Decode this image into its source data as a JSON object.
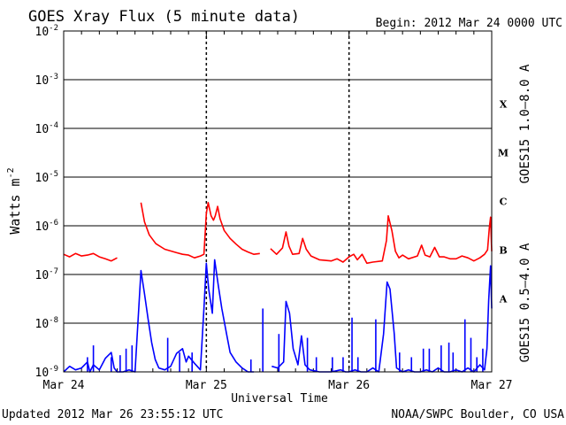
{
  "header": {
    "title": "GOES Xray Flux (5 minute data)",
    "begin": "Begin:  2012 Mar 24 0000 UTC"
  },
  "footer": {
    "updated": "Updated 2012 Mar 26 23:55:12 UTC",
    "credit": "NOAA/SWPC Boulder, CO USA"
  },
  "chart_data": {
    "type": "line",
    "title": "GOES Xray Flux (5 minute data)",
    "xlabel": "Universal Time",
    "ylabel": "Watts m",
    "ylabel_exponent": "-2",
    "yscale": "log",
    "ylim": [
      1e-09,
      0.01
    ],
    "xlim": [
      0,
      72
    ],
    "x_unit": "hours since 2012 Mar 24 0000 UTC",
    "x_ticks": [
      {
        "x": 0,
        "label": "Mar 24"
      },
      {
        "x": 24,
        "label": "Mar 25"
      },
      {
        "x": 48,
        "label": "Mar 26"
      },
      {
        "x": 72,
        "label": "Mar 27"
      }
    ],
    "y_ticks": [
      {
        "exp": -2,
        "base": "10",
        "sup": "-2"
      },
      {
        "exp": -3,
        "base": "10",
        "sup": "-3"
      },
      {
        "exp": -4,
        "base": "10",
        "sup": "-4"
      },
      {
        "exp": -5,
        "base": "10",
        "sup": "-5"
      },
      {
        "exp": -6,
        "base": "10",
        "sup": "-6"
      },
      {
        "exp": -7,
        "base": "10",
        "sup": "-7"
      },
      {
        "exp": -8,
        "base": "10",
        "sup": "-8"
      },
      {
        "exp": -9,
        "base": "10",
        "sup": "-9"
      }
    ],
    "flare_classes": [
      {
        "label": "X",
        "exp": -3.5
      },
      {
        "label": "M",
        "exp": -4.5
      },
      {
        "label": "C",
        "exp": -5.5
      },
      {
        "label": "B",
        "exp": -6.5
      },
      {
        "label": "A",
        "exp": -7.5
      }
    ],
    "grid": true,
    "series": [
      {
        "name": "GOES15 1.0–8.0 A",
        "color": "#ff0000",
        "segments": [
          [
            [
              0,
              2.6e-07
            ],
            [
              1,
              2.3e-07
            ],
            [
              2,
              2.7e-07
            ],
            [
              3,
              2.4e-07
            ],
            [
              4,
              2.5e-07
            ],
            [
              5,
              2.7e-07
            ],
            [
              6,
              2.3e-07
            ],
            [
              7,
              2.1e-07
            ],
            [
              8,
              1.9e-07
            ],
            [
              9,
              2.2e-07
            ]
          ],
          [
            [
              13,
              3e-06
            ],
            [
              13.6,
              1.2e-06
            ],
            [
              14.4,
              6.5e-07
            ],
            [
              15.5,
              4.3e-07
            ],
            [
              17,
              3.3e-07
            ],
            [
              19,
              2.8e-07
            ],
            [
              20,
              2.6e-07
            ],
            [
              21,
              2.5e-07
            ],
            [
              22,
              2.2e-07
            ],
            [
              23,
              2.4e-07
            ],
            [
              23.6,
              2.6e-07
            ],
            [
              24,
              1.8e-06
            ],
            [
              24.3,
              3e-06
            ],
            [
              24.8,
              1.6e-06
            ],
            [
              25.2,
              1.3e-06
            ],
            [
              25.5,
              1.6e-06
            ],
            [
              25.9,
              2.5e-06
            ],
            [
              26.3,
              1.4e-06
            ],
            [
              27,
              8e-07
            ],
            [
              28,
              5.5e-07
            ],
            [
              29,
              4.2e-07
            ],
            [
              30,
              3.3e-07
            ],
            [
              31,
              2.9e-07
            ],
            [
              32,
              2.6e-07
            ],
            [
              33,
              2.7e-07
            ]
          ],
          [
            [
              34.8,
              3.4e-07
            ],
            [
              35.8,
              2.6e-07
            ],
            [
              36.8,
              3.5e-07
            ],
            [
              37.4,
              7.5e-07
            ],
            [
              37.9,
              3.8e-07
            ],
            [
              38.5,
              2.6e-07
            ],
            [
              39.6,
              2.7e-07
            ],
            [
              40.2,
              5.5e-07
            ],
            [
              40.8,
              3.3e-07
            ],
            [
              41.6,
              2.4e-07
            ],
            [
              43,
              2e-07
            ],
            [
              45,
              1.9e-07
            ],
            [
              46,
              2.1e-07
            ],
            [
              47,
              1.8e-07
            ],
            [
              48,
              2.3e-07
            ],
            [
              48.8,
              2.6e-07
            ],
            [
              49.4,
              2e-07
            ],
            [
              50.2,
              2.6e-07
            ],
            [
              51,
              1.7e-07
            ],
            [
              52,
              1.8e-07
            ],
            [
              53.6,
              1.9e-07
            ],
            [
              54.3,
              5e-07
            ],
            [
              54.6,
              1.6e-06
            ],
            [
              55.2,
              8e-07
            ],
            [
              55.8,
              3e-07
            ],
            [
              56.4,
              2.2e-07
            ],
            [
              57,
              2.5e-07
            ],
            [
              58,
              2.1e-07
            ],
            [
              59.5,
              2.4e-07
            ],
            [
              60.2,
              4e-07
            ],
            [
              60.8,
              2.5e-07
            ],
            [
              61.6,
              2.3e-07
            ],
            [
              62.4,
              3.6e-07
            ],
            [
              63.2,
              2.3e-07
            ],
            [
              64,
              2.3e-07
            ],
            [
              65,
              2.1e-07
            ],
            [
              66,
              2.1e-07
            ],
            [
              67,
              2.4e-07
            ],
            [
              68,
              2.2e-07
            ],
            [
              69,
              1.9e-07
            ],
            [
              70,
              2.2e-07
            ],
            [
              70.8,
              2.6e-07
            ],
            [
              71.3,
              3.2e-07
            ],
            [
              71.6,
              9e-07
            ],
            [
              71.8,
              1.5e-06
            ],
            [
              72,
              3e-07
            ]
          ]
        ]
      },
      {
        "name": "GOES15 0.5–4.0 A",
        "color": "#0000ff",
        "segments": [
          [
            [
              0,
              1e-09
            ],
            [
              1,
              1.3e-09
            ],
            [
              2,
              1.1e-09
            ],
            [
              3,
              1.2e-09
            ],
            [
              4,
              1.6e-09
            ],
            [
              4.4,
              1e-09
            ],
            [
              5,
              1.4e-09
            ],
            [
              6,
              1.1e-09
            ],
            [
              7,
              1.9e-09
            ],
            [
              8,
              2.5e-09
            ],
            [
              8.5,
              1.2e-09
            ],
            [
              9,
              1e-09
            ],
            [
              10,
              1e-09
            ],
            [
              11,
              1.1e-09
            ],
            [
              12,
              1e-09
            ],
            [
              13,
              1.2e-07
            ],
            [
              13.6,
              4e-08
            ],
            [
              14.2,
              1.2e-08
            ],
            [
              14.8,
              4e-09
            ],
            [
              15.4,
              1.8e-09
            ],
            [
              16,
              1.2e-09
            ],
            [
              17,
              1.1e-09
            ],
            [
              18,
              1.3e-09
            ],
            [
              19,
              2.4e-09
            ],
            [
              20,
              3e-09
            ],
            [
              20.6,
              1.6e-09
            ],
            [
              21,
              2.1e-09
            ],
            [
              22,
              1.5e-09
            ],
            [
              23,
              1.1e-09
            ],
            [
              23.6,
              2e-08
            ],
            [
              24,
              1.7e-07
            ],
            [
              24.4,
              5e-08
            ],
            [
              25,
              1.6e-08
            ],
            [
              25.4,
              2e-07
            ],
            [
              26,
              6e-08
            ],
            [
              26.6,
              2e-08
            ],
            [
              27.4,
              6e-09
            ],
            [
              28,
              2.5e-09
            ],
            [
              29,
              1.6e-09
            ],
            [
              30,
              1.2e-09
            ],
            [
              31,
              1e-09
            ],
            [
              32,
              1e-09
            ]
          ],
          [
            [
              35,
              1.3e-09
            ],
            [
              36,
              1.2e-09
            ],
            [
              37,
              1.6e-09
            ],
            [
              37.4,
              2.8e-08
            ],
            [
              38,
              1.6e-08
            ],
            [
              38.6,
              3e-09
            ],
            [
              39.4,
              1.4e-09
            ],
            [
              40,
              5.5e-09
            ],
            [
              40.6,
              1.4e-09
            ],
            [
              41.4,
              1.1e-09
            ],
            [
              43,
              1e-09
            ],
            [
              45,
              1e-09
            ],
            [
              46.6,
              1.1e-09
            ],
            [
              47.4,
              1e-09
            ],
            [
              48,
              1e-09
            ],
            [
              49,
              1.1e-09
            ],
            [
              50,
              1e-09
            ],
            [
              51,
              1e-09
            ],
            [
              52,
              1.2e-09
            ],
            [
              53,
              1e-09
            ],
            [
              53.8,
              6e-09
            ],
            [
              54.4,
              7e-08
            ],
            [
              54.9,
              5e-08
            ],
            [
              55.6,
              6e-09
            ],
            [
              56,
              1.2e-09
            ],
            [
              57,
              1e-09
            ],
            [
              58,
              1.1e-09
            ],
            [
              59,
              1e-09
            ],
            [
              60,
              1e-09
            ],
            [
              61,
              1.1e-09
            ],
            [
              62,
              1e-09
            ],
            [
              63,
              1.2e-09
            ],
            [
              64,
              1e-09
            ],
            [
              65,
              1e-09
            ],
            [
              66,
              1.1e-09
            ],
            [
              67,
              1e-09
            ],
            [
              68,
              1.2e-09
            ],
            [
              69,
              1e-09
            ],
            [
              70,
              1.4e-09
            ],
            [
              70.8,
              1.1e-09
            ],
            [
              71.2,
              3e-09
            ],
            [
              71.5,
              3e-08
            ],
            [
              71.8,
              1.5e-07
            ],
            [
              72,
              2e-08
            ]
          ]
        ],
        "spikes": [
          [
            4,
            2e-09
          ],
          [
            5,
            3.5e-09
          ],
          [
            8,
            2e-09
          ],
          [
            9.5,
            2.2e-09
          ],
          [
            10.5,
            3e-09
          ],
          [
            11.5,
            3.5e-09
          ],
          [
            17.5,
            5e-09
          ],
          [
            19.5,
            2.5e-09
          ],
          [
            21.6,
            2.5e-09
          ],
          [
            31.5,
            1.8e-09
          ],
          [
            33.5,
            2e-08
          ],
          [
            36.2,
            6e-09
          ],
          [
            41,
            5e-09
          ],
          [
            42.5,
            2e-09
          ],
          [
            45.2,
            2e-09
          ],
          [
            47,
            2e-09
          ],
          [
            48.5,
            1.3e-08
          ],
          [
            49.5,
            2e-09
          ],
          [
            52.5,
            1.2e-08
          ],
          [
            56.5,
            2.5e-09
          ],
          [
            58.5,
            2e-09
          ],
          [
            60.5,
            3e-09
          ],
          [
            61.5,
            3e-09
          ],
          [
            63.5,
            3.5e-09
          ],
          [
            64.8,
            4e-09
          ],
          [
            65.5,
            2.5e-09
          ],
          [
            67.5,
            1.2e-08
          ],
          [
            68.5,
            5e-09
          ],
          [
            69.5,
            2e-09
          ],
          [
            70.5,
            3e-09
          ]
        ]
      }
    ]
  }
}
